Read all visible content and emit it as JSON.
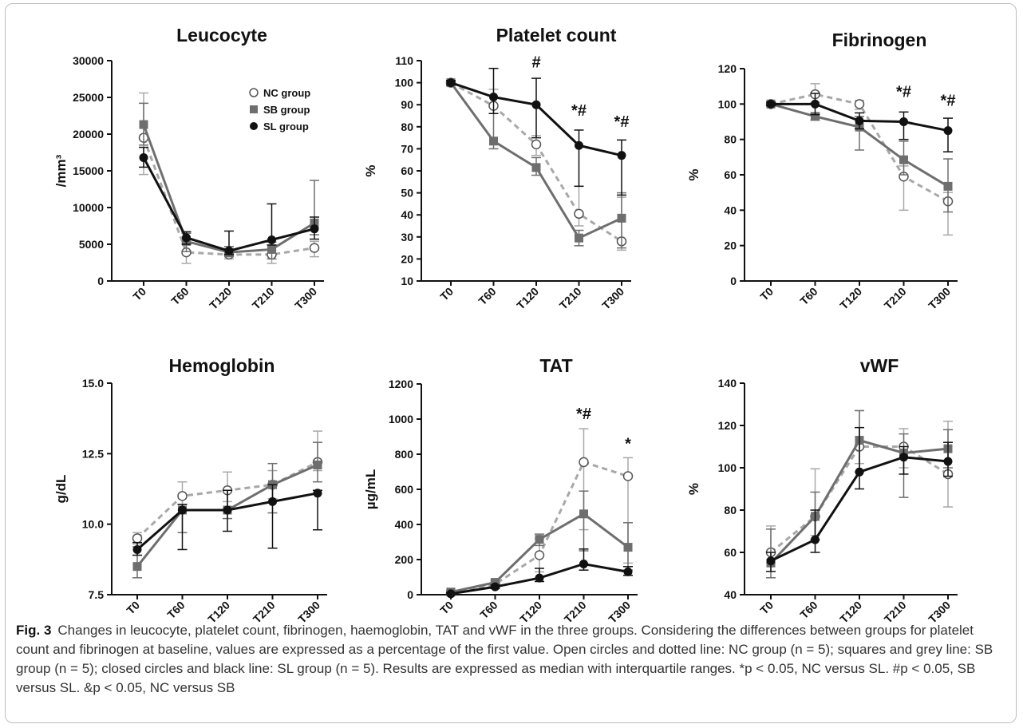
{
  "caption": {
    "label": "Fig. 3",
    "text": "Changes in leucocyte, platelet count, fibrinogen, haemoglobin, TAT and vWF in the three groups. Considering the differences between groups for platelet count and fibrinogen at baseline, values are expressed as a percentage of the first value. Open circles and dotted line: NC group (n = 5); squares and grey line: SB group (n = 5); closed circles and black line: SL group (n = 5). Results are expressed as median with interquartile ranges. *p < 0.05, NC versus SL. #p < 0.05, SB versus SL. &p < 0.05, NC versus SB"
  },
  "style": {
    "nc_color": "#a8a8a8",
    "sb_color": "#6e6e6e",
    "sl_color": "#111111"
  },
  "legend": {
    "position": "top-right of Leucocyte panel",
    "entries": [
      "NC group",
      "SB group",
      "SL group"
    ]
  },
  "chart_data": [
    {
      "type": "line",
      "title": "Leucocyte",
      "ylabel": "/mm³",
      "categories": [
        "T0",
        "T60",
        "T120",
        "T210",
        "T300"
      ],
      "ylim": [
        0,
        30000
      ],
      "yticks": [
        "0",
        "5000",
        "10000",
        "15000",
        "20000",
        "25000",
        "30000"
      ],
      "annotations": [],
      "series": [
        {
          "name": "NC group",
          "values": [
            19500,
            3900,
            3600,
            3600,
            4500
          ],
          "lower": [
            14500,
            2400,
            3000,
            2400,
            3300
          ],
          "upper": [
            25600,
            5200,
            4200,
            4200,
            5400
          ]
        },
        {
          "name": "SB group",
          "values": [
            21300,
            5400,
            3900,
            4300,
            7900
          ],
          "lower": [
            18500,
            4000,
            3300,
            3000,
            6300
          ],
          "upper": [
            24200,
            6500,
            4700,
            5300,
            13700
          ]
        },
        {
          "name": "SL group",
          "values": [
            16800,
            5900,
            4100,
            5600,
            7100
          ],
          "lower": [
            15500,
            5000,
            3600,
            4900,
            5700
          ],
          "upper": [
            18200,
            6700,
            6800,
            10500,
            8700
          ]
        }
      ]
    },
    {
      "type": "line",
      "title": "Platelet count",
      "ylabel": "%",
      "categories": [
        "T0",
        "T60",
        "T120",
        "T210",
        "T300"
      ],
      "ylim": [
        10,
        110
      ],
      "yticks": [
        "10",
        "20",
        "30",
        "40",
        "50",
        "60",
        "70",
        "80",
        "90",
        "100",
        "110"
      ],
      "annotations": [
        {
          "label": "#",
          "x": 2,
          "y": 107
        },
        {
          "label": "*#",
          "x": 3,
          "y": 85
        },
        {
          "label": "*#",
          "x": 4,
          "y": 80
        }
      ],
      "series": [
        {
          "name": "NC group",
          "values": [
            100,
            89.5,
            72,
            40.5,
            28
          ],
          "lower": [
            99,
            86,
            67,
            35,
            24
          ],
          "upper": [
            101,
            97,
            76,
            53,
            48
          ]
        },
        {
          "name": "SB group",
          "values": [
            100,
            73.5,
            61.5,
            29.5,
            38.5
          ],
          "lower": [
            99,
            70,
            58,
            26,
            25
          ],
          "upper": [
            101,
            86,
            66,
            33,
            50
          ]
        },
        {
          "name": "SL group",
          "values": [
            100,
            93.5,
            90,
            71.5,
            67
          ],
          "lower": [
            99,
            86,
            75,
            53,
            49
          ],
          "upper": [
            101,
            106.5,
            102,
            78.5,
            74
          ]
        }
      ]
    },
    {
      "type": "line",
      "title": "Fibrinogen",
      "ylabel": "%",
      "categories": [
        "T0",
        "T60",
        "T120",
        "T210",
        "T300"
      ],
      "ylim": [
        0,
        120
      ],
      "yticks": [
        "0",
        "20",
        "40",
        "60",
        "80",
        "100",
        "120"
      ],
      "annotations": [
        {
          "label": "*#",
          "x": 3,
          "y": 104
        },
        {
          "label": "*#",
          "x": 4,
          "y": 99
        }
      ],
      "series": [
        {
          "name": "NC group",
          "values": [
            100,
            105.5,
            100,
            59,
            45
          ],
          "lower": [
            99,
            101,
            97,
            40,
            26
          ],
          "upper": [
            101,
            111.5,
            102,
            65,
            50
          ]
        },
        {
          "name": "SB group",
          "values": [
            100,
            93,
            87,
            68.5,
            53.5
          ],
          "lower": [
            99,
            91,
            74,
            60,
            39
          ],
          "upper": [
            101,
            95,
            93,
            79,
            69
          ]
        },
        {
          "name": "SL group",
          "values": [
            100,
            100,
            90.5,
            90,
            85
          ],
          "lower": [
            99,
            94,
            86,
            80,
            73
          ],
          "upper": [
            101,
            106,
            95,
            95.5,
            92
          ]
        }
      ]
    },
    {
      "type": "line",
      "title": "Hemoglobin",
      "ylabel": "g/dL",
      "categories": [
        "T0",
        "T60",
        "T120",
        "T210",
        "T300"
      ],
      "ylim": [
        7.5,
        15
      ],
      "yticks": [
        "7.5",
        "10.0",
        "12.5",
        "15.0"
      ],
      "annotations": [],
      "series": [
        {
          "name": "NC group",
          "values": [
            9.5,
            11.0,
            11.2,
            11.4,
            12.2
          ],
          "lower": [
            9.3,
            10.5,
            10.8,
            10.9,
            11.9
          ],
          "upper": [
            9.7,
            11.5,
            11.85,
            11.9,
            13.3
          ]
        },
        {
          "name": "SB group",
          "values": [
            8.5,
            10.5,
            10.5,
            11.4,
            12.1
          ],
          "lower": [
            8.1,
            9.7,
            10.2,
            10.4,
            11.5
          ],
          "upper": [
            9.2,
            10.7,
            11.2,
            12.15,
            12.9
          ]
        },
        {
          "name": "SL group",
          "values": [
            9.1,
            10.5,
            10.5,
            10.8,
            11.1
          ],
          "lower": [
            8.9,
            9.1,
            9.75,
            9.15,
            9.8
          ],
          "upper": [
            9.35,
            10.7,
            11.2,
            11.4,
            11.2
          ]
        }
      ]
    },
    {
      "type": "line",
      "title": "TAT",
      "ylabel": "µg/mL",
      "categories": [
        "T0",
        "T60",
        "T120",
        "T210",
        "T300"
      ],
      "ylim": [
        0,
        1200
      ],
      "yticks": [
        "0",
        "200",
        "400",
        "600",
        "800",
        "1000",
        "1200"
      ],
      "annotations": [
        {
          "label": "*#",
          "x": 3,
          "y": 1000
        },
        {
          "label": "*",
          "x": 4,
          "y": 830
        }
      ],
      "series": [
        {
          "name": "NC group",
          "values": [
            10,
            60,
            225,
            755,
            675
          ],
          "lower": [
            5,
            40,
            130,
            370,
            180
          ],
          "upper": [
            15,
            80,
            320,
            945,
            780
          ]
        },
        {
          "name": "SB group",
          "values": [
            15,
            70,
            315,
            460,
            270
          ],
          "lower": [
            5,
            50,
            280,
            250,
            140
          ],
          "upper": [
            25,
            80,
            345,
            590,
            410
          ]
        },
        {
          "name": "SL group",
          "values": [
            5,
            45,
            95,
            175,
            130
          ],
          "lower": [
            0,
            35,
            75,
            140,
            110
          ],
          "upper": [
            10,
            55,
            150,
            260,
            160
          ]
        }
      ]
    },
    {
      "type": "line",
      "title": "vWF",
      "ylabel": "%",
      "categories": [
        "T0",
        "T60",
        "T120",
        "T210",
        "T300"
      ],
      "ylim": [
        40,
        140
      ],
      "yticks": [
        "40",
        "60",
        "80",
        "100",
        "120",
        "140"
      ],
      "annotations": [],
      "series": [
        {
          "name": "NC group",
          "values": [
            60,
            77,
            110,
            110,
            97
          ],
          "lower": [
            55,
            68,
            102,
            100,
            81.5
          ],
          "upper": [
            72.5,
            99.5,
            127,
            118.5,
            122
          ]
        },
        {
          "name": "SB group",
          "values": [
            55,
            77,
            113,
            107,
            109
          ],
          "lower": [
            48,
            66,
            98,
            86,
            100
          ],
          "upper": [
            71,
            88.5,
            127,
            116,
            118
          ]
        },
        {
          "name": "SL group",
          "values": [
            56,
            66,
            98,
            105,
            103
          ],
          "lower": [
            51,
            60,
            90,
            97,
            96
          ],
          "upper": [
            60,
            80,
            119,
            110,
            112
          ]
        }
      ]
    }
  ]
}
